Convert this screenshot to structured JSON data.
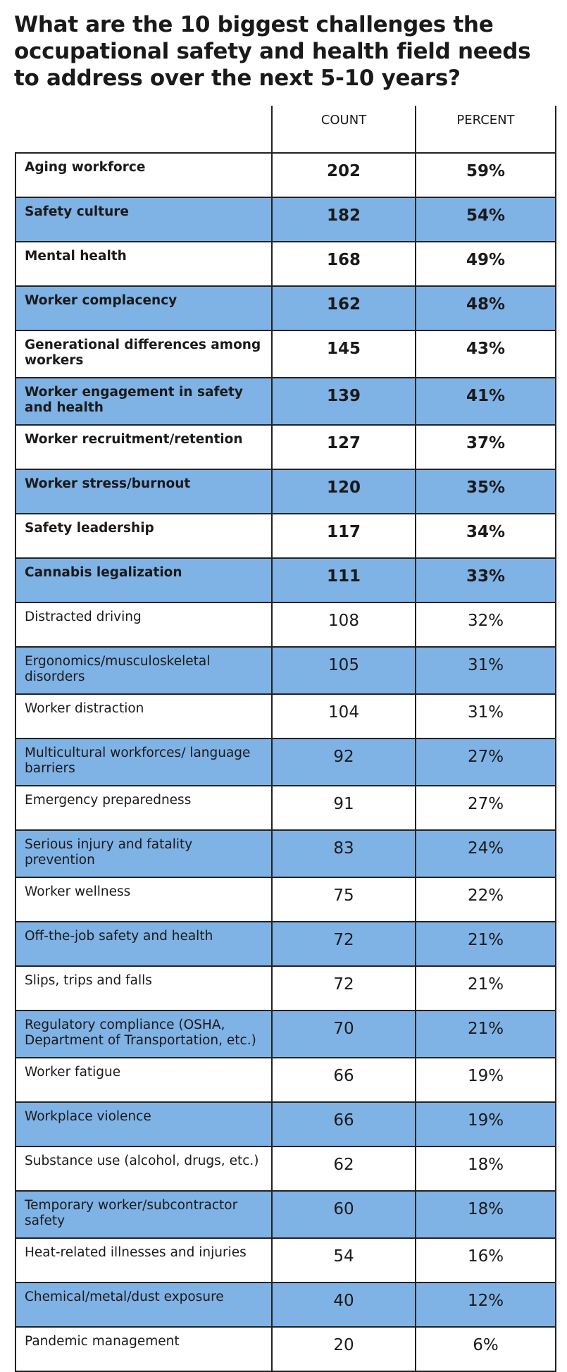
{
  "header": {
    "title": "What are the 10 biggest challenges the occupational safety and health field needs to address over the next 5-10 years?"
  },
  "table": {
    "columns": [
      "COUNT",
      "PERCENT"
    ],
    "rows": [
      [
        "Aging workforce",
        202,
        "59%"
      ],
      [
        "Safety culture",
        182,
        "54%"
      ],
      [
        "Mental health",
        168,
        "49%"
      ],
      [
        "Worker complacency",
        162,
        "48%"
      ],
      [
        "Generational differences among workers",
        145,
        "43%"
      ],
      [
        "Worker engagement in safety and health",
        139,
        "41%"
      ],
      [
        "Worker recruitment/retention",
        127,
        "37%"
      ],
      [
        "Worker stress/burnout",
        120,
        "35%"
      ],
      [
        "Safety leadership",
        117,
        "34%"
      ],
      [
        "Cannabis legalization",
        111,
        "33%"
      ],
      [
        "Distracted driving",
        108,
        "32%"
      ],
      [
        "Ergonomics/musculoskeletal disorders",
        105,
        "31%"
      ],
      [
        "Worker distraction",
        104,
        "31%"
      ],
      [
        "Multicultural workforces/ language barriers",
        92,
        "27%"
      ],
      [
        "Emergency preparedness",
        91,
        "27%"
      ],
      [
        "Serious injury and fatality prevention",
        83,
        "24%"
      ],
      [
        "Worker wellness",
        75,
        "22%"
      ],
      [
        "Off-the-job safety and health",
        72,
        "21%"
      ],
      [
        "Slips, trips and falls",
        72,
        "21%"
      ],
      [
        "Regulatory compliance (OSHA, Department of Transportation, etc.)",
        70,
        "21%"
      ],
      [
        "Worker fatigue",
        66,
        "19%"
      ],
      [
        "Workplace violence",
        66,
        "19%"
      ],
      [
        "Substance use (alcohol, drugs, etc.)",
        62,
        "18%"
      ],
      [
        "Temporary worker/subcontractor safety",
        60,
        "18%"
      ],
      [
        "Heat-related illnesses and injuries",
        54,
        "16%"
      ],
      [
        "Chemical/metal/dust exposure",
        40,
        "12%"
      ],
      [
        "Pandemic management",
        20,
        "6%"
      ]
    ]
  }
}
